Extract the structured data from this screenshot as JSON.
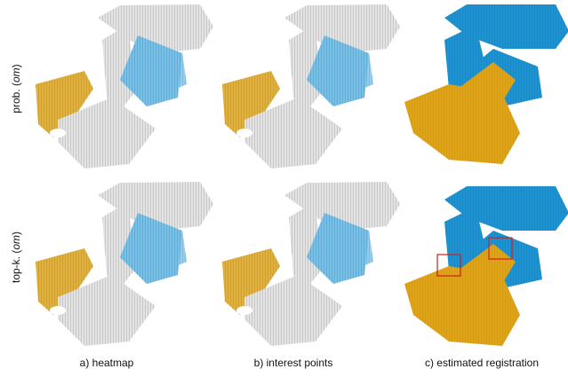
{
  "rows": [
    {
      "prefix": "prob. (",
      "emphasis": "om",
      "suffix": ")"
    },
    {
      "prefix": "top-k. (",
      "emphasis": "om",
      "suffix": ")"
    }
  ],
  "columns": [
    "a) heatmap",
    "b) interest points",
    "c) estimated registration"
  ]
}
